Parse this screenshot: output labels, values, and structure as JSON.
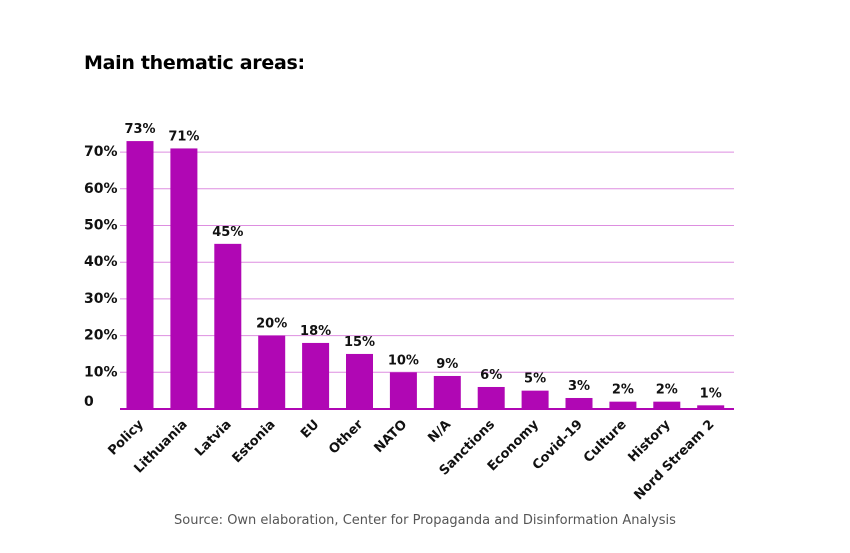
{
  "title": "Main thematic areas:",
  "source": "Source: Own elaboration, Center for Propaganda and Disinformation Analysis",
  "colors": {
    "bar": "#b007b4",
    "grid": "#dd8ee0",
    "axis": "#b007b4",
    "text": "#111111"
  },
  "chart_data": {
    "type": "bar",
    "title": "Main thematic areas:",
    "xlabel": "",
    "ylabel": "",
    "categories": [
      "Policy",
      "Lithuania",
      "Latvia",
      "Estonia",
      "EU",
      "Other",
      "NATO",
      "N/A",
      "Sanctions",
      "Economy",
      "Covid-19",
      "Culture",
      "History",
      "Nord Stream 2"
    ],
    "values": [
      73,
      71,
      45,
      20,
      18,
      15,
      10,
      9,
      6,
      5,
      3,
      2,
      2,
      1
    ],
    "data_labels": [
      "73%",
      "71%",
      "45%",
      "20%",
      "18%",
      "15%",
      "10%",
      "9%",
      "6%",
      "5%",
      "3%",
      "2%",
      "2%",
      "1%"
    ],
    "ylim": [
      0,
      70
    ],
    "yticks": [
      0,
      10,
      20,
      30,
      40,
      50,
      60,
      70
    ],
    "ytick_labels": [
      "0",
      "10%",
      "20%",
      "30%",
      "40%",
      "50%",
      "60%",
      "70%"
    ],
    "grid": true,
    "legend": "none"
  }
}
